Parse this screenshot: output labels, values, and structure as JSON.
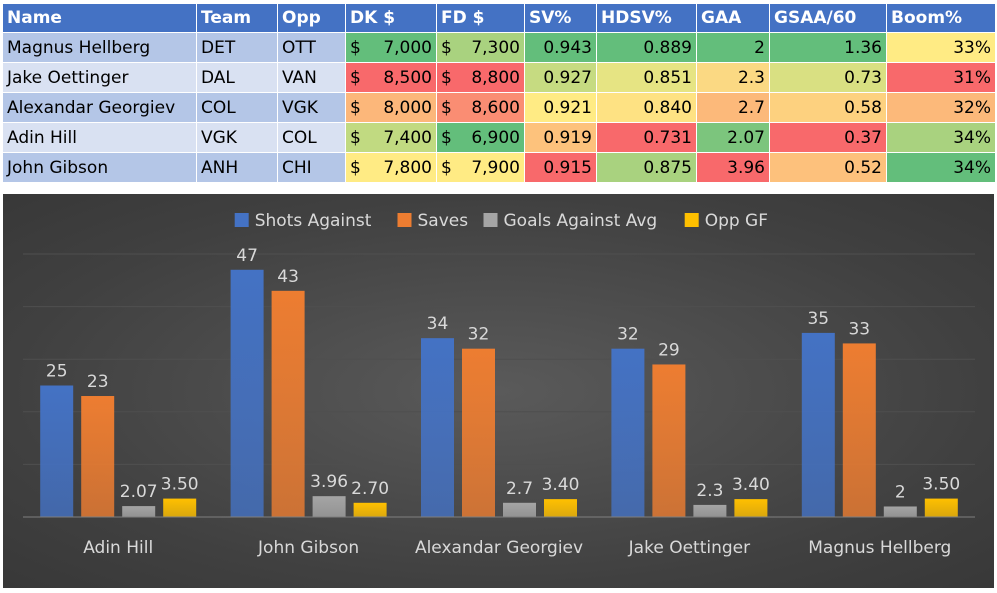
{
  "table": {
    "headers": [
      "Name",
      "Team",
      "Opp",
      "DK $",
      "FD $",
      "SV%",
      "HDSV%",
      "GAA",
      "GSAA/60",
      "Boom%"
    ],
    "currency_symbol": "$",
    "rows": [
      {
        "name": "Magnus Hellberg",
        "team": "DET",
        "opp": "OTT",
        "dk": "7,000",
        "fd": "7,300",
        "sv": "0.943",
        "hdsv": "0.889",
        "gaa": "2",
        "gsaa": "1.36",
        "boom": "33%",
        "colors": {
          "dk": "#63be7b",
          "fd": "#a9d27f",
          "sv": "#63be7b",
          "hdsv": "#63be7b",
          "gaa": "#63be7b",
          "gsaa": "#63be7b",
          "boom": "#ffeb84"
        }
      },
      {
        "name": "Jake Oettinger",
        "team": "DAL",
        "opp": "VAN",
        "dk": "8,500",
        "fd": "8,800",
        "sv": "0.927",
        "hdsv": "0.851",
        "gaa": "2.3",
        "gsaa": "0.73",
        "boom": "31%",
        "colors": {
          "dk": "#f8696b",
          "fd": "#f8696b",
          "sv": "#c6db81",
          "hdsv": "#e6e483",
          "gaa": "#fbd983",
          "gsaa": "#d9e082",
          "boom": "#f8696b"
        }
      },
      {
        "name": "Alexandar Georgiev",
        "team": "COL",
        "opp": "VGK",
        "dk": "8,000",
        "fd": "8,600",
        "sv": "0.921",
        "hdsv": "0.840",
        "gaa": "2.7",
        "gsaa": "0.58",
        "boom": "32%",
        "colors": {
          "dk": "#fcb77a",
          "fd": "#fa8d73",
          "sv": "#ffeb84",
          "hdsv": "#fee283",
          "gaa": "#fcb97a",
          "gsaa": "#fdd17f",
          "boom": "#fcb97a"
        }
      },
      {
        "name": "Adin Hill",
        "team": "VGK",
        "opp": "COL",
        "dk": "7,400",
        "fd": "6,900",
        "sv": "0.919",
        "hdsv": "0.731",
        "gaa": "2.07",
        "gsaa": "0.37",
        "boom": "34%",
        "colors": {
          "dk": "#c1da81",
          "fd": "#63be7b",
          "sv": "#fdc27c",
          "hdsv": "#f8696b",
          "gaa": "#7cc57d",
          "gsaa": "#f8696b",
          "boom": "#a9d27f"
        }
      },
      {
        "name": "John Gibson",
        "team": "ANH",
        "opp": "CHI",
        "dk": "7,800",
        "fd": "7,900",
        "sv": "0.915",
        "hdsv": "0.875",
        "gaa": "3.96",
        "gsaa": "0.52",
        "boom": "34%",
        "colors": {
          "dk": "#ffeb84",
          "fd": "#ffeb84",
          "sv": "#f8696b",
          "hdsv": "#a9d27f",
          "gaa": "#f8696b",
          "gsaa": "#fdc17c",
          "boom": "#63be7b"
        }
      }
    ]
  },
  "chart_data": {
    "type": "bar",
    "title": "",
    "legend_position": "top",
    "categories": [
      "Adin Hill",
      "John Gibson",
      "Alexandar Georgiev",
      "Jake Oettinger",
      "Magnus Hellberg"
    ],
    "series": [
      {
        "name": "Shots Against",
        "color": "#4472c4",
        "values": [
          25,
          47,
          34,
          32,
          35
        ],
        "labels": [
          "25",
          "47",
          "34",
          "32",
          "35"
        ]
      },
      {
        "name": "Saves",
        "color": "#ed7d31",
        "values": [
          23,
          43,
          32,
          29,
          33
        ],
        "labels": [
          "23",
          "43",
          "32",
          "29",
          "33"
        ]
      },
      {
        "name": "Goals Against Avg",
        "color": "#a5a5a5",
        "values": [
          2.07,
          3.96,
          2.7,
          2.3,
          2
        ],
        "labels": [
          "2.07",
          "3.96",
          "2.7",
          "2.3",
          "2"
        ]
      },
      {
        "name": "Opp GF",
        "color": "#ffc000",
        "values": [
          3.5,
          2.7,
          3.4,
          3.4,
          3.5
        ],
        "labels": [
          "3.50",
          "2.70",
          "3.40",
          "3.40",
          "3.50"
        ]
      }
    ],
    "ylim": [
      0,
      50
    ],
    "grid": true,
    "xlabel": "",
    "ylabel": ""
  }
}
